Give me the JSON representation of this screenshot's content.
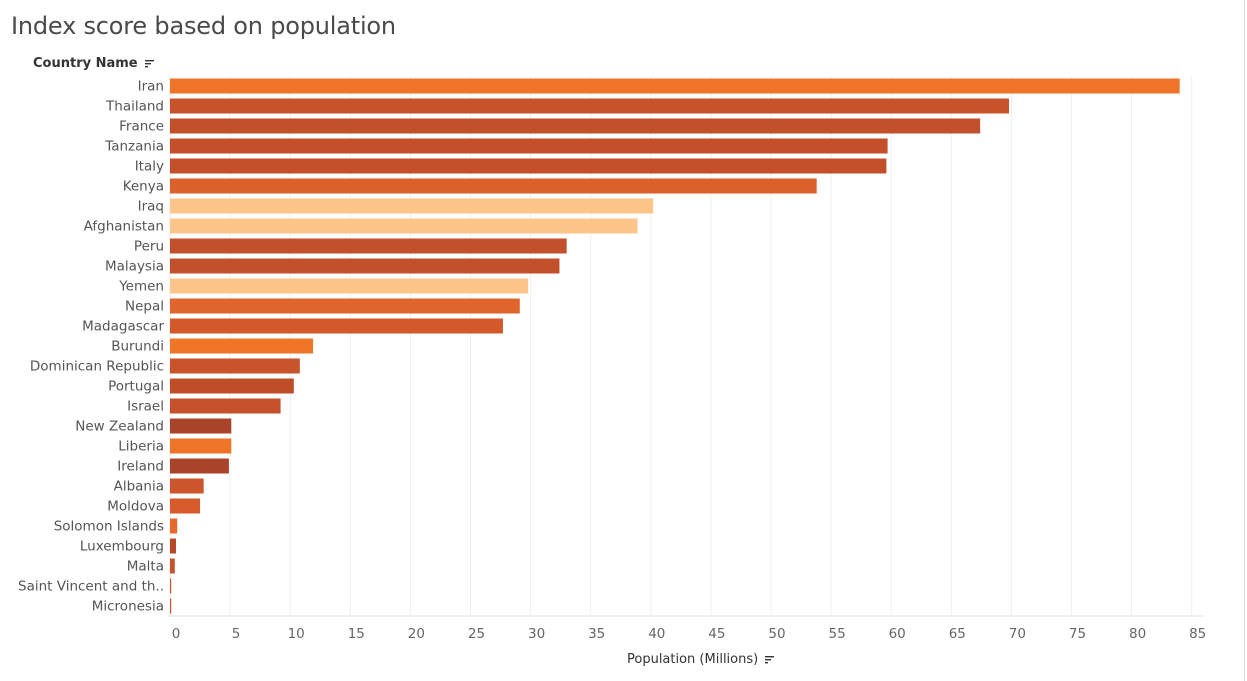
{
  "chart_data": {
    "type": "bar",
    "orientation": "horizontal",
    "title": "Index score based on population",
    "row_header": "Country Name",
    "xlabel": "Population (Millions)",
    "xlim": [
      0,
      86
    ],
    "xticks": [
      0,
      5,
      10,
      15,
      20,
      25,
      30,
      35,
      40,
      45,
      50,
      55,
      60,
      65,
      70,
      75,
      80,
      85
    ],
    "grid": "vertical",
    "categories": [
      "Iran",
      "Thailand",
      "France",
      "Tanzania",
      "Italy",
      "Kenya",
      "Iraq",
      "Afghanistan",
      "Peru",
      "Malaysia",
      "Yemen",
      "Nepal",
      "Madagascar",
      "Burundi",
      "Dominican Republic",
      "Portugal",
      "Israel",
      "New Zealand",
      "Liberia",
      "Ireland",
      "Albania",
      "Moldova",
      "Solomon Islands",
      "Luxembourg",
      "Malta",
      "Saint Vincent and th..",
      "Micronesia"
    ],
    "values": [
      84.0,
      69.8,
      67.4,
      59.7,
      59.6,
      53.8,
      40.2,
      38.9,
      33.0,
      32.4,
      29.8,
      29.1,
      27.7,
      11.9,
      10.8,
      10.3,
      9.2,
      5.1,
      5.1,
      4.9,
      2.8,
      2.5,
      0.6,
      0.5,
      0.4,
      0.1,
      0.1
    ],
    "colors": [
      "#ee7427",
      "#c8532a",
      "#c2502a",
      "#c44f2a",
      "#c4502a",
      "#db612a",
      "#fdc58a",
      "#fdc58a",
      "#c2502a",
      "#c2502a",
      "#fdc58a",
      "#e0652c",
      "#d3592b",
      "#ef7627",
      "#c9532a",
      "#bf4d27",
      "#c5502a",
      "#a8442a",
      "#ee7427",
      "#a8442a",
      "#cc552b",
      "#d65a2a",
      "#e8692a",
      "#b8482a",
      "#c8532a",
      "#c8532a",
      "#c8532a"
    ]
  }
}
